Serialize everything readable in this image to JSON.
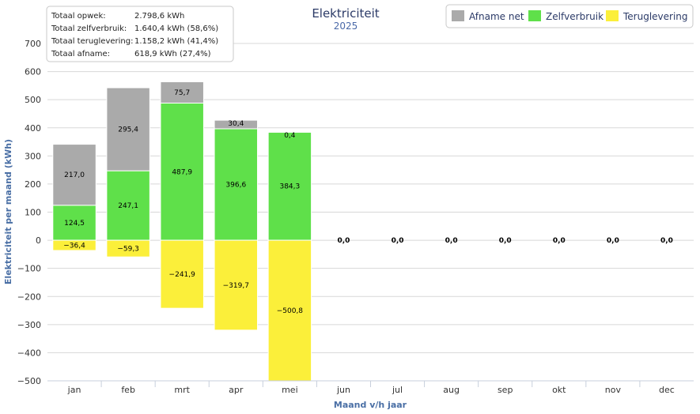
{
  "chart_data": {
    "type": "bar",
    "stacked": true,
    "title": "Elektriciteit",
    "subtitle": "2025",
    "xlabel": "Maand v/h jaar",
    "ylabel": "Elektriciteit per maand (kWh)",
    "ylim": [
      -500,
      700
    ],
    "yticks": [
      -500,
      -400,
      -300,
      -200,
      -100,
      0,
      100,
      200,
      300,
      400,
      500,
      600,
      700
    ],
    "ytick_labels": [
      "−500",
      "−400",
      "−300",
      "−200",
      "−100",
      "0",
      "100",
      "200",
      "300",
      "400",
      "500",
      "600",
      "700"
    ],
    "categories": [
      "jan",
      "feb",
      "mrt",
      "apr",
      "mei",
      "jun",
      "jul",
      "aug",
      "sep",
      "okt",
      "nov",
      "dec"
    ],
    "series": [
      {
        "name": "Afname net",
        "color": "#aaaaaa",
        "values": [
          217.0,
          295.4,
          75.7,
          30.4,
          0.4,
          0,
          0,
          0,
          0,
          0,
          0,
          0
        ],
        "labels": [
          "217,0",
          "295,4",
          "75,7",
          "30,4",
          "0,4",
          "",
          "",
          "",
          "",
          "",
          "",
          ""
        ]
      },
      {
        "name": "Zelfverbruik",
        "color": "#5fe04a",
        "values": [
          124.5,
          247.1,
          487.9,
          396.6,
          384.3,
          0,
          0,
          0,
          0,
          0,
          0,
          0
        ],
        "labels": [
          "124,5",
          "247,1",
          "487,9",
          "396,6",
          "384,3",
          "",
          "",
          "",
          "",
          "",
          "",
          ""
        ]
      },
      {
        "name": "Teruglevering",
        "color": "#fbef3a",
        "values": [
          -36.4,
          -59.3,
          -241.9,
          -319.7,
          -500.8,
          0,
          0,
          0,
          0,
          0,
          0,
          0
        ],
        "labels": [
          "−36,4",
          "−59,3",
          "−241,9",
          "−319,7",
          "−500,8",
          "0,0",
          "0,0",
          "0,0",
          "0,0",
          "0,0",
          "0,0",
          "0,0"
        ]
      }
    ],
    "legend": {
      "position": "top-right"
    }
  },
  "summary": [
    {
      "label": "Totaal opwek:",
      "value": "2.798,6 kWh"
    },
    {
      "label": "Totaal zelfverbruik:",
      "value": "1.640,4 kWh (58,6%)"
    },
    {
      "label": "Totaal teruglevering:",
      "value": "1.158,2 kWh (41,4%)"
    },
    {
      "label": "Totaal afname:",
      "value": "618,9 kWh (27,4%)"
    }
  ]
}
